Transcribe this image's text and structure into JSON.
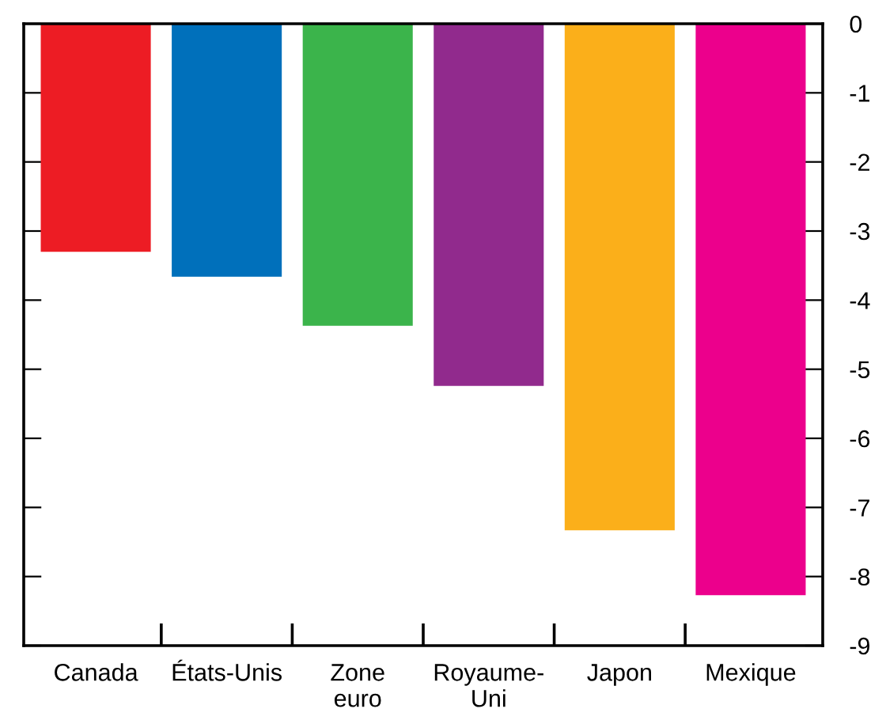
{
  "chart_data": {
    "type": "bar",
    "categories": [
      "Canada",
      "États-Unis",
      "Zone\neuro",
      "Royaume-\nUni",
      "Japon",
      "Mexique"
    ],
    "values": [
      -3.3,
      -3.66,
      -4.37,
      -5.24,
      -7.33,
      -8.27
    ],
    "colors": [
      "#ed1c24",
      "#0070bb",
      "#3bb44b",
      "#912a8d",
      "#fbaf1a",
      "#ec008c"
    ],
    "ylim": [
      -9,
      0
    ],
    "yticks": [
      0,
      -1,
      -2,
      -3,
      -4,
      -5,
      -6,
      -7,
      -8,
      -9
    ],
    "grid": false
  }
}
